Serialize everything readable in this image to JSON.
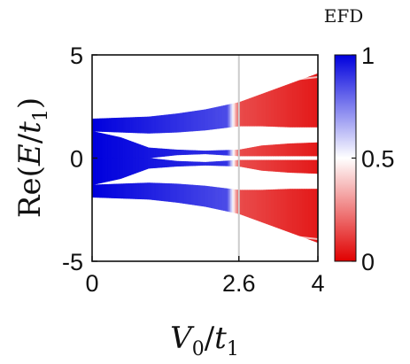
{
  "chart_data": {
    "type": "scatter",
    "xlabel": "V_0/t_1",
    "ylabel": "Re(E/t_1)",
    "xlim": [
      0,
      4
    ],
    "ylim": [
      -5,
      5
    ],
    "x_ticks": [
      "0",
      "2.6",
      "4"
    ],
    "y_ticks": [
      "5",
      "0",
      "-5"
    ],
    "reference_line_x": 2.6,
    "colorbar": {
      "title": "EFD",
      "range": [
        0,
        1
      ],
      "tick_labels": [
        "1",
        "0.5",
        "0"
      ],
      "colors": {
        "low": "#e00000",
        "mid": "#ffffff",
        "high": "#0000dd"
      }
    },
    "bands": [
      {
        "name": "upper-outer",
        "points": [
          [
            0.0,
            1.9,
            1.3
          ],
          [
            1.0,
            2.0,
            1.2
          ],
          [
            1.5,
            2.15,
            1.25
          ],
          [
            2.0,
            2.35,
            1.35
          ],
          [
            2.6,
            2.7,
            1.55
          ],
          [
            3.0,
            3.1,
            1.55
          ],
          [
            3.5,
            3.6,
            1.5
          ],
          [
            4.0,
            4.1,
            1.5
          ]
        ],
        "split": 3.5,
        "efd": [
          [
            0,
            1
          ],
          [
            2.4,
            0.85
          ],
          [
            2.6,
            0.15
          ],
          [
            4,
            0.05
          ]
        ]
      },
      {
        "name": "upper-inner",
        "points": [
          [
            0.0,
            1.3,
            0.0
          ],
          [
            0.5,
            1.0,
            0.0
          ],
          [
            1.0,
            0.5,
            0.0
          ],
          [
            1.5,
            0.4,
            0.15
          ],
          [
            2.0,
            0.35,
            0.2
          ],
          [
            2.6,
            0.4,
            0.1
          ],
          [
            3.0,
            0.6,
            0.1
          ],
          [
            3.5,
            0.7,
            0.1
          ],
          [
            4.0,
            0.75,
            0.1
          ]
        ],
        "efd": [
          [
            0,
            1
          ],
          [
            2.4,
            0.9
          ],
          [
            2.6,
            0.15
          ],
          [
            4,
            0.05
          ]
        ]
      },
      {
        "name": "lower-inner",
        "points": [
          [
            0.0,
            0.0,
            -1.3
          ],
          [
            0.5,
            0.0,
            -1.0
          ],
          [
            1.0,
            0.0,
            -0.5
          ],
          [
            1.5,
            -0.15,
            -0.4
          ],
          [
            2.0,
            -0.2,
            -0.35
          ],
          [
            2.6,
            -0.1,
            -0.4
          ],
          [
            3.0,
            -0.1,
            -0.6
          ],
          [
            3.5,
            -0.1,
            -0.7
          ],
          [
            4.0,
            -0.1,
            -0.75
          ]
        ],
        "efd": [
          [
            0,
            1
          ],
          [
            2.4,
            0.9
          ],
          [
            2.6,
            0.15
          ],
          [
            4,
            0.05
          ]
        ]
      },
      {
        "name": "lower-outer",
        "points": [
          [
            0.0,
            -1.3,
            -1.9
          ],
          [
            1.0,
            -1.2,
            -2.0
          ],
          [
            1.5,
            -1.25,
            -2.15
          ],
          [
            2.0,
            -1.35,
            -2.35
          ],
          [
            2.6,
            -1.55,
            -2.7
          ],
          [
            3.0,
            -1.55,
            -3.1
          ],
          [
            3.5,
            -1.5,
            -3.6
          ],
          [
            4.0,
            -1.5,
            -4.1
          ]
        ],
        "split": -3.5,
        "efd": [
          [
            0,
            1
          ],
          [
            2.4,
            0.85
          ],
          [
            2.6,
            0.15
          ],
          [
            4,
            0.05
          ]
        ]
      }
    ]
  }
}
